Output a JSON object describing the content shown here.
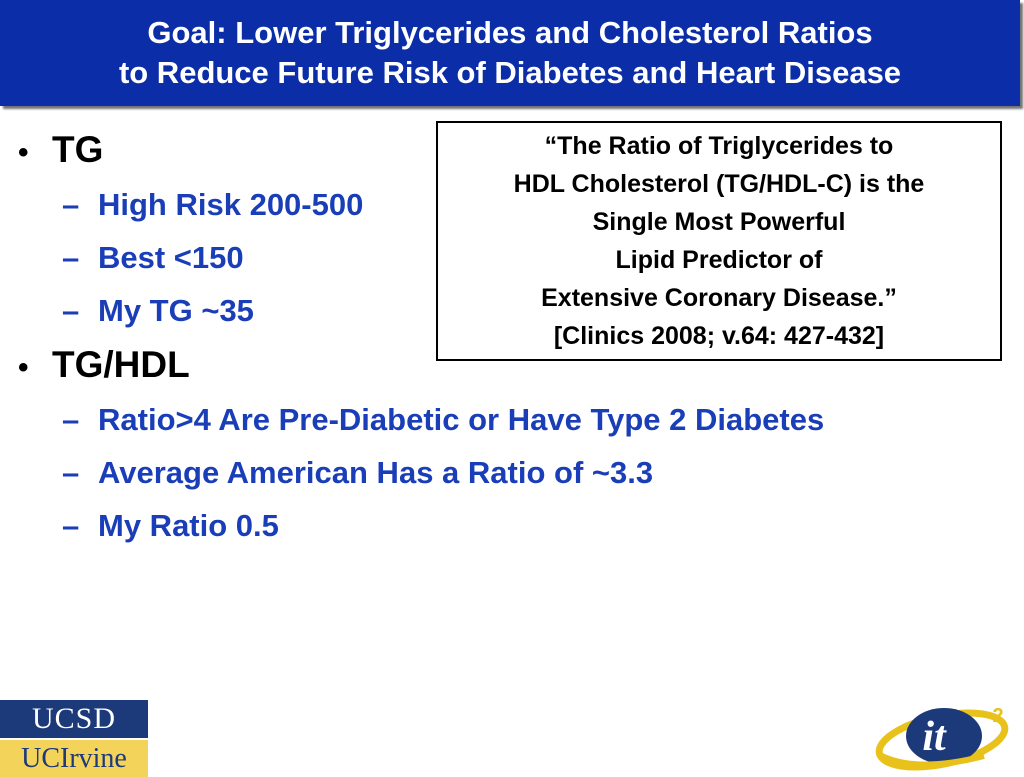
{
  "title": {
    "line1": "Goal: Lower Triglycerides and Cholesterol Ratios",
    "line2": "to Reduce Future Risk of Diabetes and Heart Disease"
  },
  "bullets": [
    {
      "label": "TG",
      "subs": [
        "High Risk 200-500",
        "Best <150",
        "My TG ~35"
      ]
    },
    {
      "label": "TG/HDL",
      "subs": [
        "Ratio>4 Are Pre-Diabetic or Have Type 2 Diabetes",
        "Average American Has a Ratio of ~3.3",
        "My Ratio 0.5"
      ]
    }
  ],
  "quote": {
    "lines": [
      "“The Ratio of Triglycerides to",
      "HDL Cholesterol (TG/HDL-C) is the",
      "Single Most Powerful",
      "Lipid Predictor of",
      "Extensive Coronary Disease.”",
      "[Clinics 2008; v.64: 427-432]"
    ]
  },
  "logos": {
    "ucsd": "UCSD",
    "uci": "UCIrvine",
    "it2_text": "it",
    "it2_sup": "2"
  },
  "colors": {
    "title_bg": "#0b2ea8",
    "sub_text": "#1a3db8",
    "ucsd_bg": "#1c3a7a",
    "uci_bg": "#f4d35a"
  }
}
